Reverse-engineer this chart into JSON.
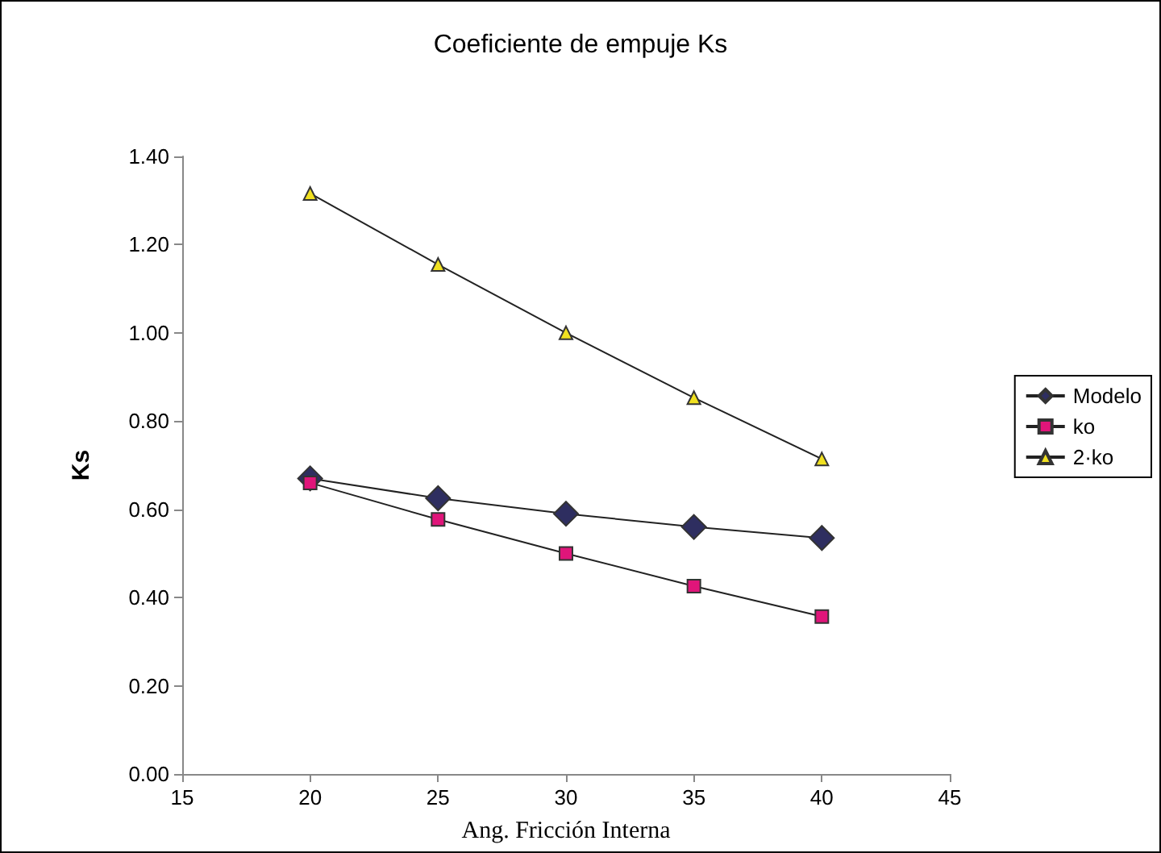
{
  "chart_data": {
    "type": "line",
    "title": "Coeficiente de empuje Ks",
    "xlabel": "Ang. Fricción Interna",
    "ylabel": "Ks",
    "x": [
      20,
      25,
      30,
      35,
      40
    ],
    "series": [
      {
        "name": "Modelo",
        "color": "#2e2e60",
        "marker": "diamond",
        "values": [
          0.67,
          0.625,
          0.59,
          0.56,
          0.535
        ]
      },
      {
        "name": "ko",
        "color": "#e0157a",
        "marker": "square",
        "values": [
          0.66,
          0.577,
          0.5,
          0.426,
          0.357
        ]
      },
      {
        "name": "2·ko",
        "color": "#f0e020",
        "marker": "triangle",
        "values": [
          1.316,
          1.155,
          1.0,
          0.853,
          0.714
        ]
      }
    ],
    "xlim": [
      15,
      45
    ],
    "xticks": [
      15,
      20,
      25,
      30,
      35,
      40,
      45
    ],
    "ylim": [
      0,
      1.4
    ],
    "yticks": [
      {
        "value": 0,
        "label": "0.00"
      },
      {
        "value": 0.2,
        "label": "0.20"
      },
      {
        "value": 0.4,
        "label": "0.40"
      },
      {
        "value": 0.6,
        "label": "0.60"
      },
      {
        "value": 0.8,
        "label": "0.80"
      },
      {
        "value": 1.0,
        "label": "1.00"
      },
      {
        "value": 1.2,
        "label": "1.20"
      },
      {
        "value": 1.4,
        "label": "1.40"
      }
    ],
    "grid": false,
    "legend": "right",
    "line_style": "solid"
  }
}
